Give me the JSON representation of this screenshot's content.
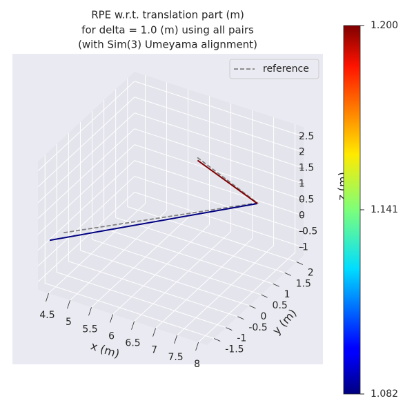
{
  "chart_data": {
    "type": "line3d",
    "title": [
      "RPE w.r.t. translation part (m)",
      "for delta = 1.0 (m) using all pairs",
      "(with Sim(3) Umeyama alignment)"
    ],
    "xlabel": "x (m)",
    "ylabel": "y (m)",
    "zlabel": "z (m)",
    "xlim": [
      4.25,
      8.2
    ],
    "ylim": [
      -1.8,
      2.3
    ],
    "zlim": [
      -1.25,
      2.8
    ],
    "xticks": [
      4.5,
      5.0,
      5.5,
      6.0,
      6.5,
      7.0,
      7.5,
      8.0
    ],
    "yticks": [
      -1.5,
      -1.0,
      -0.5,
      0.0,
      0.5,
      1.0,
      1.5,
      2.0
    ],
    "zticks": [
      -1.0,
      -0.5,
      0.0,
      0.5,
      1.0,
      1.5,
      2.0,
      2.5
    ],
    "grid": true,
    "legend": "upper right",
    "series": [
      {
        "name": "reference",
        "color": "#808080",
        "dash": true,
        "x": [
          4.74,
          8.0,
          6.45
        ],
        "y": [
          -1.6,
          0.7,
          0.9
        ],
        "z": [
          0.63,
          1.42,
          2.07
        ]
      }
    ],
    "trajectory": {
      "x": [
        4.47,
        8.0,
        6.5
      ],
      "y": [
        -1.7,
        0.7,
        0.89
      ],
      "z": [
        0.34,
        1.4,
        1.97
      ],
      "rpe": [
        1.082,
        1.2
      ]
    },
    "colorbar": {
      "cmap": "jet",
      "clim": [
        1.082,
        1.2
      ],
      "ticks": [
        1.082,
        1.141,
        {
          "value": 1.2,
          "label": "1.200"
        }
      ]
    }
  }
}
